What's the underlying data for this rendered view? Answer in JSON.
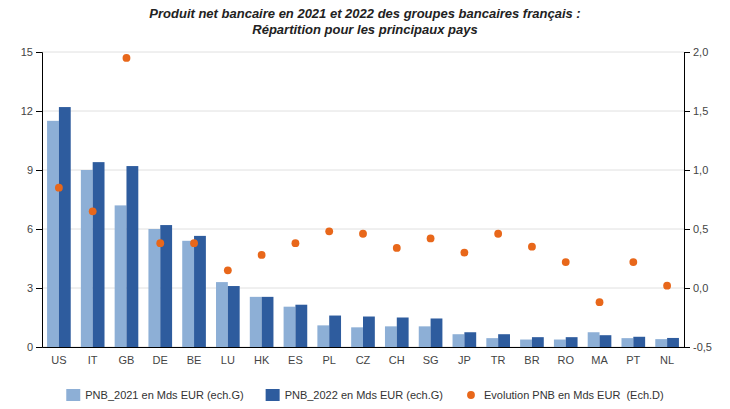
{
  "chart_data": {
    "type": "bar",
    "title": "Produit net bancaire en 2021 et 2022 des groupes bancaires français :\nRépartition pour les principaux pays",
    "categories": [
      "US",
      "IT",
      "GB",
      "DE",
      "BE",
      "LU",
      "HK",
      "ES",
      "PL",
      "CZ",
      "CH",
      "SG",
      "JP",
      "TR",
      "BR",
      "RO",
      "MA",
      "PT",
      "NL"
    ],
    "series": [
      {
        "name": "PNB_2021 en Mds EUR (ech.G)",
        "color": "#8DAFD6",
        "type": "bar",
        "values": [
          11.5,
          9.0,
          7.2,
          6.0,
          5.4,
          3.3,
          2.55,
          2.05,
          1.1,
          1.0,
          1.05,
          1.05,
          0.65,
          0.45,
          0.38,
          0.38,
          0.75,
          0.45,
          0.4
        ]
      },
      {
        "name": "PNB_2022 en Mds EUR (ech.G)",
        "color": "#2E5C9E",
        "type": "bar",
        "values": [
          12.2,
          9.4,
          9.2,
          6.2,
          5.65,
          3.1,
          2.55,
          2.15,
          1.6,
          1.55,
          1.5,
          1.45,
          0.75,
          0.65,
          0.5,
          0.5,
          0.6,
          0.52,
          0.46
        ]
      },
      {
        "name": "Evolution PNB en Mds EUR  (Ech.D)",
        "color": "#E8671A",
        "type": "scatter",
        "marker": "circle",
        "axis": "y2",
        "values": [
          0.85,
          0.65,
          1.95,
          0.38,
          0.38,
          0.15,
          0.28,
          0.38,
          0.48,
          0.46,
          0.34,
          0.42,
          0.3,
          0.46,
          0.35,
          0.22,
          -0.12,
          0.22,
          0.02
        ]
      }
    ],
    "ylim": [
      0,
      15
    ],
    "yticks": [
      0,
      3,
      6,
      9,
      12,
      15
    ],
    "y2lim": [
      -0.5,
      2.0
    ],
    "y2ticks": [
      {
        "value": -0.5,
        "label": "-0,5"
      },
      {
        "value": 0.0,
        "label": "0,0"
      },
      {
        "value": 0.5,
        "label": "0,5"
      },
      {
        "value": 1.0,
        "label": "1,0"
      },
      {
        "value": 1.5,
        "label": "1,5"
      },
      {
        "value": 2.0,
        "label": "2,0"
      }
    ],
    "grid": true,
    "legend": "bottom"
  }
}
